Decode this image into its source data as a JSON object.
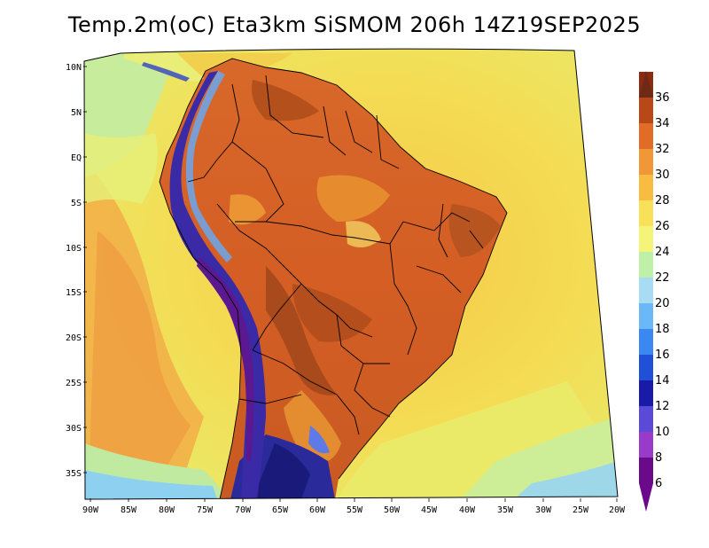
{
  "title": "Temp.2m(oC) Eta3km SiSMOM 206h 14Z19SEP2025",
  "lat_labels": [
    "10N",
    "5N",
    "EQ",
    "5S",
    "10S",
    "15S",
    "20S",
    "25S",
    "30S",
    "35S"
  ],
  "lon_labels": [
    "90W",
    "85W",
    "80W",
    "75W",
    "70W",
    "65W",
    "60W",
    "55W",
    "50W",
    "45W",
    "40W",
    "35W",
    "30W",
    "25W",
    "20W"
  ],
  "colorbar": {
    "levels": [
      "6",
      "8",
      "10",
      "12",
      "14",
      "16",
      "18",
      "20",
      "22",
      "24",
      "26",
      "28",
      "30",
      "32",
      "34",
      "36"
    ],
    "colors": [
      "#6a0a8a",
      "#9a3ac8",
      "#5a4ad8",
      "#1a1aa8",
      "#2050d8",
      "#3a88f0",
      "#6ab8f8",
      "#a8dcf4",
      "#bff0a8",
      "#f4f478",
      "#f8e058",
      "#f7bc40",
      "#f09838",
      "#e06c28",
      "#b84818",
      "#8a2a0e"
    ],
    "min_arrow_color": "#6a0a8a",
    "max_arrow_color": "#6e2a16"
  },
  "colors": {
    "ocean_warm": "#f6cc48",
    "ocean_mid": "#f4e256",
    "ocean_cool": "#ccec98",
    "ocean_pacific": "#f2a648",
    "land_hot": "#d96628",
    "land_very_hot": "#a8481c",
    "andes_cold": "#3a2aa0",
    "andes_very_cold": "#5a1a90",
    "border": "#000000"
  }
}
